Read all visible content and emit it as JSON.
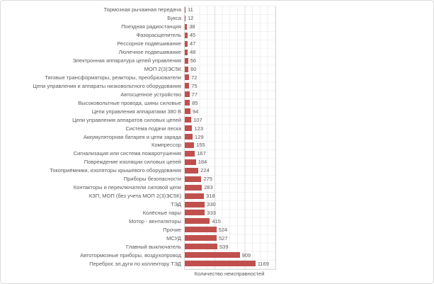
{
  "chart_data": {
    "type": "bar",
    "orientation": "horizontal",
    "title": "",
    "xlabel": "Количество неисправностей",
    "ylabel": "",
    "xlim": [
      0,
      1500
    ],
    "gridlines": {
      "show": true,
      "major_interval": 500,
      "minor_interval": 125
    },
    "legend": "none",
    "bar_color": "#C0504D",
    "text_color": "#595959",
    "value_labels_shown": true,
    "categories": [
      "Тормозная рычажная передача",
      "Букса",
      "Поездная радиостанция",
      "Фазорасщепитель",
      "Рессорное подвешивание",
      "Люлечное подвешивание",
      "Электронная аппаратура цепей управления",
      "МОП 2(3)ЭС5К",
      "Тяговые трансформаторы, реакторы, преобразователи",
      "Цепи управления и аппараты низковольтного оборудования",
      "Автосцепное устройство",
      "Высоковольтные провода, шины силовые",
      "Цепи управления аппаратами 380 В",
      "Цепи управления аппаратов силовых цепей",
      "Система подачи песка",
      "Аккумуляторная батарея и цепи заряда",
      "Компрессор",
      "Сигнализация или система пожаротушения",
      "Повреждение изоляции силовых цепей",
      "Токоприёмники, изоляторы крышевого оборудования",
      "Приборы безопасности",
      "Контакторы и переключатели силовой цепи",
      "КЗП, МОП (без учета МОП 2(3)ЭС5К)",
      "ТЭД",
      "Колёсные пары",
      "Мотор - вентиляторы",
      "Прочие",
      "МСУД",
      "Главный выключатель",
      "Автотормозные приборы, воздухопровод",
      "Переброс эл.дуги по коллектору ТЭД"
    ],
    "values": [
      11,
      12,
      38,
      45,
      47,
      48,
      56,
      60,
      72,
      75,
      77,
      85,
      94,
      107,
      123,
      129,
      155,
      167,
      184,
      224,
      275,
      283,
      318,
      330,
      333,
      415,
      524,
      527,
      539,
      909,
      1169
    ]
  }
}
